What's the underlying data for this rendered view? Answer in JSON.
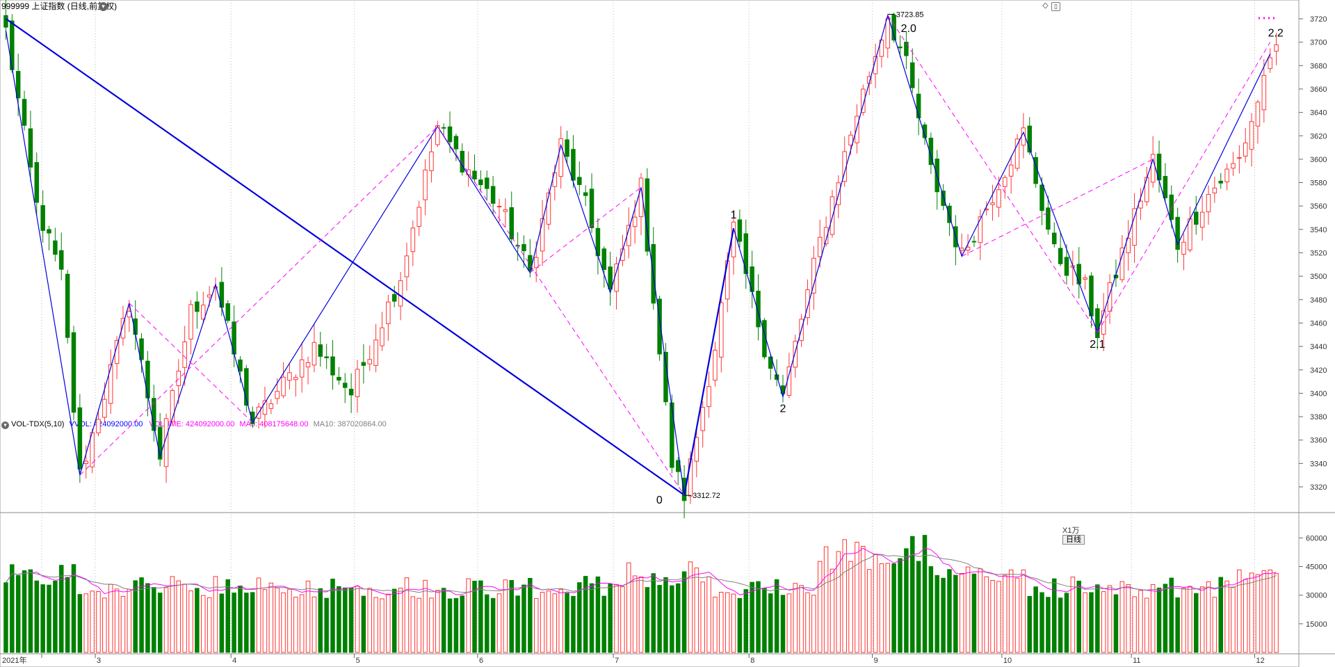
{
  "price_panel": {
    "symbol": "999999",
    "name": "上证指数",
    "mode": "(日线,前复权)",
    "high_label": "3723.85",
    "low_label": "3312.72",
    "wave_labels": [
      "0",
      "1",
      "2",
      "2.0",
      "2.1",
      "2.2"
    ],
    "y_ticks": [
      3320,
      3340,
      3360,
      3380,
      3400,
      3420,
      3440,
      3460,
      3480,
      3500,
      3520,
      3540,
      3560,
      3580,
      3600,
      3620,
      3640,
      3660,
      3680,
      3700,
      3720
    ]
  },
  "volume_panel": {
    "title": "VOL-TDX(5,10)",
    "vvol": "VVOL: 424092000.00",
    "volume": "VOLUME: 424092000.00",
    "ma5": "MA5: 408175648.00",
    "ma10": "MA10: 387020864.00",
    "y_ticks": [
      "15000",
      "30000",
      "45000",
      "60000"
    ],
    "unit": "X1万"
  },
  "x_axis": {
    "labels": [
      "2021年",
      "3",
      "4",
      "5",
      "6",
      "7",
      "8",
      "9",
      "10",
      "11",
      "12"
    ],
    "period": "日线"
  },
  "colors": {
    "up": "#ff3333",
    "down": "#008000",
    "trend_blue": "#0000dd",
    "trend_magenta": "#ff00ff",
    "ma5_color": "#ff00ff",
    "ma10_color": "#808080",
    "vvol_color": "#0000ff"
  },
  "chart_data": {
    "type": "candlestick",
    "waypoints": [
      {
        "i": 0,
        "p": 3710
      },
      {
        "i": 5,
        "p": 3560
      },
      {
        "i": 9,
        "p": 3500
      },
      {
        "i": 12,
        "p": 3330
      },
      {
        "i": 16,
        "p": 3400
      },
      {
        "i": 20,
        "p": 3477
      },
      {
        "i": 25,
        "p": 3346
      },
      {
        "i": 30,
        "p": 3470
      },
      {
        "i": 34,
        "p": 3493
      },
      {
        "i": 40,
        "p": 3375
      },
      {
        "i": 50,
        "p": 3440
      },
      {
        "i": 56,
        "p": 3400
      },
      {
        "i": 60,
        "p": 3450
      },
      {
        "i": 64,
        "p": 3500
      },
      {
        "i": 70,
        "p": 3628
      },
      {
        "i": 75,
        "p": 3590
      },
      {
        "i": 80,
        "p": 3560
      },
      {
        "i": 85,
        "p": 3503
      },
      {
        "i": 90,
        "p": 3612
      },
      {
        "i": 94,
        "p": 3560
      },
      {
        "i": 98,
        "p": 3486
      },
      {
        "i": 103,
        "p": 3576
      },
      {
        "i": 108,
        "p": 3340
      },
      {
        "i": 110,
        "p": 3313
      },
      {
        "i": 115,
        "p": 3440
      },
      {
        "i": 118,
        "p": 3541
      },
      {
        "i": 123,
        "p": 3440
      },
      {
        "i": 126,
        "p": 3397
      },
      {
        "i": 132,
        "p": 3530
      },
      {
        "i": 138,
        "p": 3640
      },
      {
        "i": 143,
        "p": 3723
      },
      {
        "i": 146,
        "p": 3680
      },
      {
        "i": 150,
        "p": 3590
      },
      {
        "i": 155,
        "p": 3517
      },
      {
        "i": 160,
        "p": 3570
      },
      {
        "i": 165,
        "p": 3623
      },
      {
        "i": 170,
        "p": 3520
      },
      {
        "i": 175,
        "p": 3490
      },
      {
        "i": 177,
        "p": 3452
      },
      {
        "i": 181,
        "p": 3520
      },
      {
        "i": 186,
        "p": 3600
      },
      {
        "i": 190,
        "p": 3527
      },
      {
        "i": 195,
        "p": 3570
      },
      {
        "i": 200,
        "p": 3600
      },
      {
        "i": 203,
        "p": 3650
      },
      {
        "i": 205,
        "p": 3690
      }
    ]
  }
}
